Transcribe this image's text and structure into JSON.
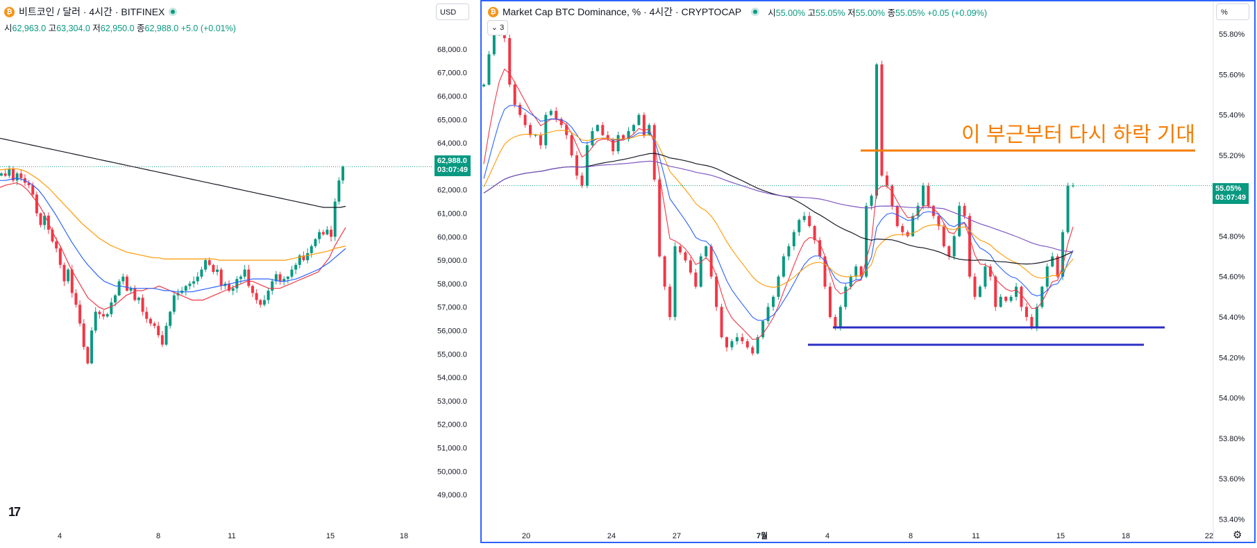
{
  "left_chart": {
    "title": "비트코인 / 달러 · 4시간 · BITFINEX",
    "ohlc": {
      "open_label": "시",
      "open": "62,963.0",
      "high_label": "고",
      "high": "63,304.0",
      "low_label": "저",
      "low": "62,950.0",
      "close_label": "종",
      "close": "62,988.0",
      "change": "+5.0 (+0.01%)"
    },
    "currency_button": "USD",
    "last_price": "62,988.0",
    "countdown": "03:07:49",
    "x_tick_labels": [
      "4",
      "8",
      "11",
      "15",
      "18"
    ]
  },
  "right_chart": {
    "title": "Market Cap BTC Dominance, % · 4시간 · CRYPTOCAP",
    "ohlc": {
      "open_label": "시",
      "open": "55.00%",
      "high_label": "고",
      "high": "55.05%",
      "low_label": "저",
      "low": "55.00%",
      "close_label": "종",
      "close": "55.05%",
      "change": "+0.05 (+0.09%)"
    },
    "indicators_toggle": "3",
    "percent_button": "%",
    "last_price": "55.05%",
    "countdown": "03:07:49",
    "annotation": "이 부근부터 다시 하락 기대",
    "x_tick_labels": [
      "20",
      "24",
      "27",
      "7월",
      "4",
      "8",
      "11",
      "15",
      "18",
      "22"
    ]
  },
  "colors": {
    "up": "#089981",
    "down": "#f23645",
    "ema_fast": "#f23645",
    "ema_mid": "#2962ff",
    "ema_slow": "#ff9800",
    "ma_long": "#131722",
    "ma_extra": "#7e57c2",
    "annotation": "#f57c00",
    "support": "#2b2fc4",
    "selection_border": "#2962ff"
  },
  "chart_data": [
    {
      "type": "line",
      "title": "비트코인 / 달러 · 4시간 · BITFINEX",
      "xlabel": "",
      "ylabel": "",
      "y_axis_ticks": [
        "68,000.0",
        "67,000.0",
        "66,000.0",
        "65,000.0",
        "64,000.0",
        "63,000.0",
        "62,000.0",
        "61,000.0",
        "60,000.0",
        "59,000.0",
        "58,000.0",
        "57,000.0",
        "56,000.0",
        "55,000.0",
        "54,000.0",
        "53,000.0",
        "52,000.0",
        "51,000.0",
        "50,000.0",
        "49,000.0"
      ],
      "ylim": [
        48500,
        68500
      ],
      "x_tick_labels": [
        "4",
        "8",
        "11",
        "15",
        "18"
      ],
      "close_path_x": [
        0,
        1,
        2,
        3,
        4,
        5,
        6,
        7,
        8,
        9,
        10,
        11,
        12,
        13,
        14,
        15,
        16,
        17,
        18,
        19,
        20,
        21,
        22,
        23,
        24,
        25,
        26,
        27,
        28,
        29,
        30,
        31,
        32,
        33,
        34,
        35,
        36,
        37,
        38,
        39,
        40,
        41,
        42,
        43,
        44,
        45,
        46,
        47,
        48,
        49,
        50,
        51,
        52,
        53,
        54,
        55,
        56,
        57,
        58,
        59,
        60,
        61,
        62,
        63,
        64,
        65,
        66,
        67,
        68,
        69,
        70,
        71,
        72,
        73,
        74,
        75,
        76,
        77,
        78,
        79,
        80,
        81,
        82,
        83,
        84,
        85,
        86,
        87
      ],
      "close": [
        62700,
        62600,
        62900,
        62400,
        62700,
        62500,
        62300,
        62200,
        61800,
        61000,
        60500,
        60900,
        60300,
        59800,
        59500,
        58800,
        58100,
        58600,
        57600,
        57100,
        56300,
        55300,
        54600,
        56000,
        56800,
        56700,
        56600,
        56700,
        57200,
        57500,
        58100,
        58300,
        57700,
        57800,
        57300,
        57400,
        56800,
        56500,
        56300,
        56200,
        55800,
        55400,
        56200,
        56800,
        57500,
        57600,
        57700,
        57900,
        58000,
        58100,
        58300,
        58600,
        59000,
        58800,
        58500,
        58600,
        57900,
        58000,
        57700,
        57800,
        58200,
        58300,
        58600,
        57900,
        57600,
        57300,
        57100,
        57300,
        57700,
        58100,
        58400,
        58100,
        58200,
        58300,
        58600,
        58800,
        59200,
        59000,
        59300,
        59600,
        59900,
        60200,
        60100,
        60300,
        60000,
        61500,
        62400,
        62988
      ],
      "series": [
        {
          "name": "",
          "color": "#f23645",
          "values": [
            62100,
            62200,
            62250,
            62300,
            62200,
            62000,
            61700,
            61400,
            61000,
            60500,
            60000,
            59600,
            59100,
            58600,
            58200,
            57800,
            57400,
            57200,
            57000,
            56900,
            57000,
            57100,
            57300,
            57500,
            57600,
            57700,
            57700,
            57800,
            57800,
            57900,
            57800,
            57700,
            57600,
            57500,
            57400,
            57300,
            57300,
            57300,
            57400,
            57500,
            57600,
            57700,
            57800,
            57900,
            58000,
            58100,
            58100,
            58000,
            57900,
            57800,
            57800,
            57800,
            57900,
            58000,
            58100,
            58200,
            58300,
            58400,
            58500,
            58800,
            59100,
            59600,
            60000,
            60400
          ]
        },
        {
          "name": "",
          "color": "#2962ff",
          "values": [
            62400,
            62400,
            62450,
            62500,
            62450,
            62350,
            62200,
            62000,
            61700,
            61350,
            61000,
            60600,
            60200,
            59800,
            59450,
            59100,
            58800,
            58550,
            58300,
            58100,
            58000,
            57900,
            57900,
            57850,
            57800,
            57800,
            57800,
            57800,
            57800,
            57750,
            57700,
            57700,
            57650,
            57650,
            57650,
            57650,
            57700,
            57750,
            57800,
            57850,
            57900,
            57950,
            58000,
            58050,
            58100,
            58150,
            58200,
            58200,
            58200,
            58200,
            58150,
            58100,
            58100,
            58150,
            58200,
            58300,
            58400,
            58500,
            58600,
            58750,
            58900,
            59100,
            59300,
            59500
          ]
        },
        {
          "name": "",
          "color": "#ff9800",
          "values": [
            62850,
            62880,
            62900,
            62900,
            62850,
            62750,
            62600,
            62450,
            62250,
            62050,
            61800,
            61550,
            61300,
            61050,
            60800,
            60550,
            60350,
            60150,
            59950,
            59800,
            59650,
            59550,
            59450,
            59350,
            59300,
            59250,
            59200,
            59150,
            59100,
            59100,
            59050,
            59050,
            59050,
            59050,
            59050,
            59050,
            59050,
            59050,
            59050,
            59050,
            59000,
            59000,
            59000,
            59000,
            59000,
            59000,
            59000,
            59000,
            59000,
            59000,
            59000,
            59000,
            59000,
            59050,
            59100,
            59150,
            59200,
            59250,
            59300,
            59350,
            59400,
            59500,
            59550,
            59600
          ]
        },
        {
          "name": "",
          "color": "#131722",
          "values": [
            64200,
            64150,
            64100,
            64050,
            64000,
            63950,
            63900,
            63850,
            63800,
            63750,
            63700,
            63650,
            63600,
            63550,
            63500,
            63450,
            63400,
            63350,
            63300,
            63250,
            63200,
            63150,
            63100,
            63050,
            63000,
            62950,
            62900,
            62850,
            62800,
            62750,
            62700,
            62650,
            62600,
            62550,
            62500,
            62450,
            62400,
            62350,
            62300,
            62250,
            62200,
            62150,
            62100,
            62050,
            62000,
            61950,
            61900,
            61850,
            61800,
            61750,
            61700,
            61650,
            61600,
            61550,
            61500,
            61450,
            61400,
            61350,
            61300,
            61250,
            61250,
            61250,
            61250,
            61300
          ]
        }
      ]
    },
    {
      "type": "line",
      "title": "Market Cap BTC Dominance, % · 4시간 · CRYPTOCAP",
      "xlabel": "",
      "ylabel": "",
      "y_axis_ticks": [
        "55.80%",
        "55.60%",
        "55.40%",
        "55.20%",
        "55.00%",
        "54.80%",
        "54.60%",
        "54.40%",
        "54.20%",
        "54.00%",
        "53.80%",
        "53.60%",
        "53.40%"
      ],
      "ylim": [
        53.36,
        55.9
      ],
      "x_tick_labels": [
        "20",
        "24",
        "27",
        "7월",
        "4",
        "8",
        "11",
        "15",
        "18",
        "22"
      ],
      "close": [
        55.55,
        55.7,
        55.8,
        55.85,
        55.78,
        55.55,
        55.45,
        55.4,
        55.35,
        55.3,
        55.3,
        55.25,
        55.4,
        55.42,
        55.38,
        55.35,
        55.3,
        55.2,
        55.1,
        55.05,
        55.25,
        55.32,
        55.35,
        55.3,
        55.28,
        55.22,
        55.3,
        55.28,
        55.32,
        55.35,
        55.4,
        55.3,
        55.35,
        55.08,
        54.7,
        54.55,
        54.4,
        54.75,
        54.72,
        54.68,
        54.62,
        54.55,
        54.7,
        54.75,
        54.6,
        54.45,
        54.3,
        54.25,
        54.28,
        54.3,
        54.28,
        54.25,
        54.22,
        54.3,
        54.38,
        54.45,
        54.5,
        54.6,
        54.7,
        54.75,
        54.82,
        54.88,
        54.9,
        54.85,
        54.78,
        54.7,
        54.55,
        54.4,
        54.35,
        54.45,
        54.55,
        54.6,
        54.65,
        54.6,
        54.95,
        55.0,
        55.65,
        55.1,
        55.05,
        54.95,
        54.85,
        54.82,
        54.8,
        54.9,
        54.95,
        55.05,
        54.95,
        54.9,
        54.85,
        54.75,
        54.7,
        54.8,
        54.95,
        54.9,
        54.6,
        54.5,
        54.55,
        54.65,
        54.6,
        54.45,
        54.5,
        54.48,
        54.5,
        54.55,
        54.45,
        54.4,
        54.35,
        54.45,
        54.55,
        54.65,
        54.7,
        54.6,
        54.82,
        55.05,
        55.05
      ]
    }
  ]
}
